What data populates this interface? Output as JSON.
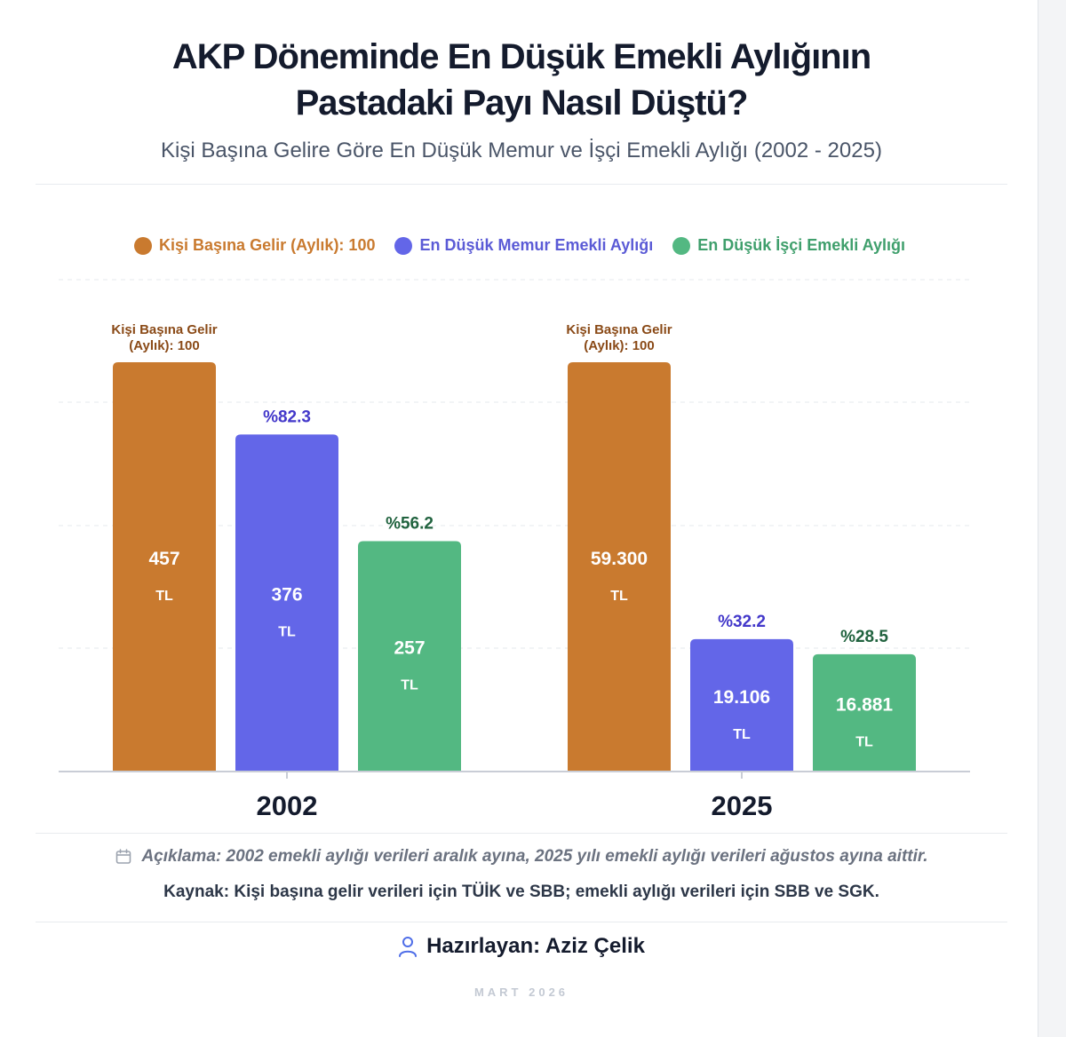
{
  "title_line1": "AKP Döneminde En Düşük Emekli Aylığının",
  "title_line2": "Pastadaki Payı Nasıl Düştü?",
  "subtitle": "Kişi Başına Gelire Göre En Düşük Memur ve İşçi Emekli Aylığı (2002 - 2025)",
  "legend": [
    {
      "label": "Kişi Başına Gelir (Aylık): 100",
      "color": "#c97a2f"
    },
    {
      "label": "En Düşük Memur Emekli Aylığı",
      "color": "#6366e8"
    },
    {
      "label": "En Düşük İşçi Emekli Aylığı",
      "color": "#53b882"
    }
  ],
  "chart_data": {
    "type": "bar",
    "categories": [
      "2002",
      "2025"
    ],
    "ylim": [
      0,
      100
    ],
    "grid": true,
    "legend_position": "top-center",
    "series": [
      {
        "name": "Kişi Başına Gelir (Aylık): 100",
        "color": "#c97a2f",
        "label_color": "#8a4a17",
        "values": [
          100,
          100
        ],
        "top_labels": [
          "Kişi Başına Gelir (Aylık): 100",
          "Kişi Başına Gelir (Aylık): 100"
        ],
        "amounts": [
          "457",
          "59.300"
        ]
      },
      {
        "name": "En Düşük Memur Emekli Aylığı",
        "color": "#6366e8",
        "label_color": "#4338ca",
        "values": [
          82.3,
          32.2
        ],
        "top_labels": [
          "%82.3",
          "%32.2"
        ],
        "amounts": [
          "376",
          "19.106"
        ]
      },
      {
        "name": "En Düşük İşçi Emekli Aylığı",
        "color": "#53b882",
        "label_color": "#21633f",
        "values": [
          56.2,
          28.5
        ],
        "top_labels": [
          "%56.2",
          "%28.5"
        ],
        "amounts": [
          "257",
          "16.881"
        ]
      }
    ],
    "unit": "TL"
  },
  "footer": {
    "calendar_icon": "calendar-icon",
    "note": "Açıklama: 2002 emekli aylığı verileri aralık ayına, 2025 yılı emekli aylığı verileri ağustos ayına aittir.",
    "source": "Kaynak: Kişi başına gelir verileri için TÜİK ve SBB; emekli aylığı verileri için SBB ve SGK.",
    "user_icon": "user-icon",
    "author": "Hazırlayan: Aziz Çelik",
    "date": "MART 2026"
  }
}
